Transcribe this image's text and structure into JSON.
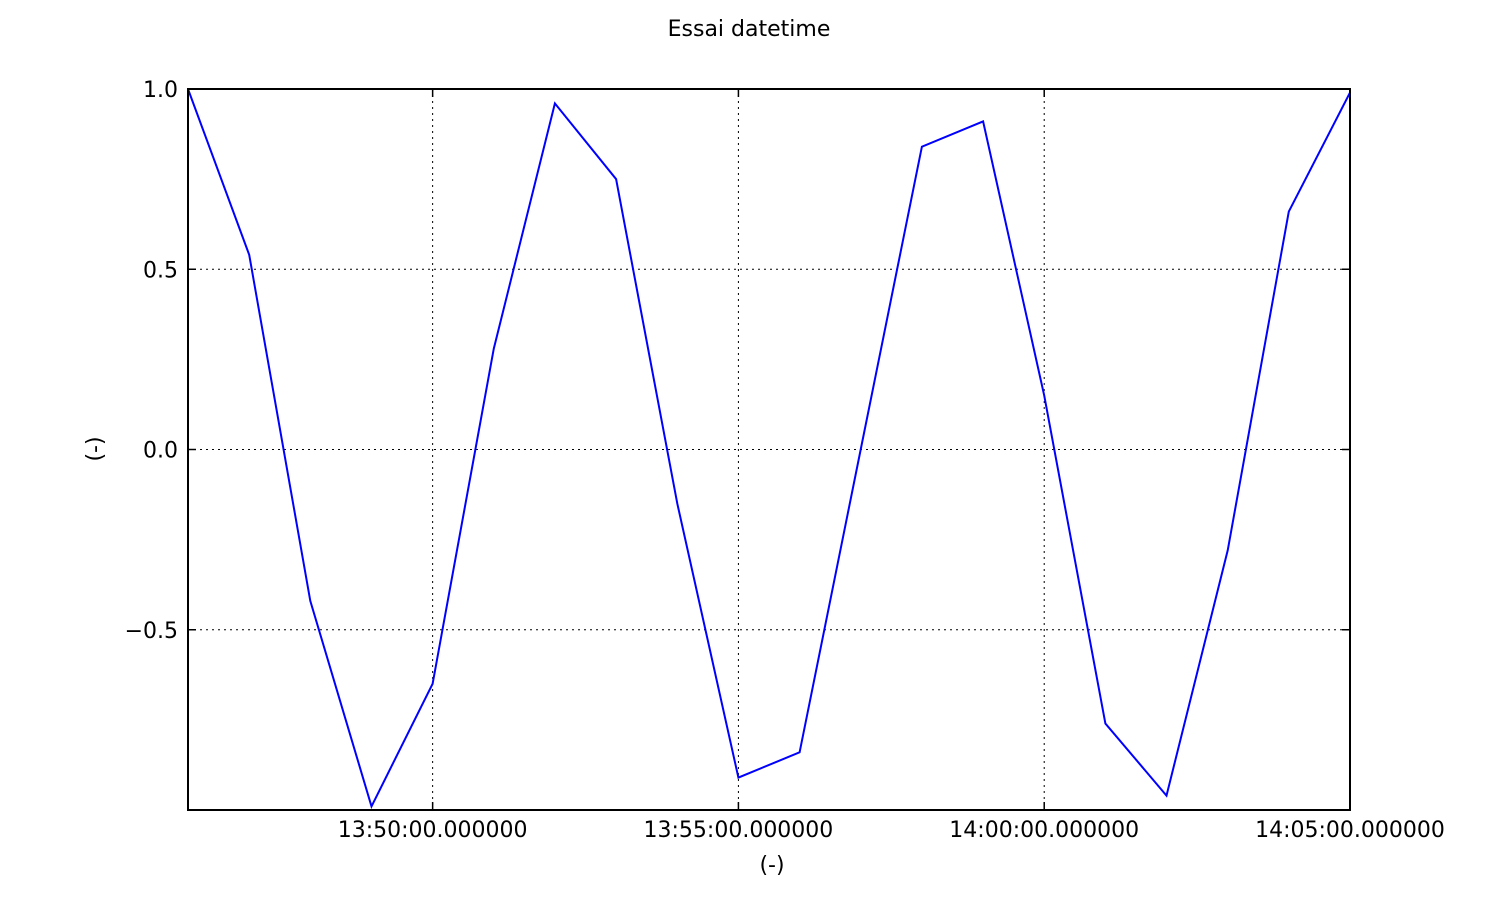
{
  "chart_data": {
    "type": "line",
    "title": "Essai datetime",
    "xlabel": "(-)",
    "ylabel": "(-)",
    "grid": true,
    "x_axis_kind": "time",
    "xlim": [
      "13:46:00",
      "14:05:00"
    ],
    "ylim": [
      -1.0,
      1.0
    ],
    "x_ticks": [
      {
        "value": "13:50:00",
        "label": "13:50:00.000000"
      },
      {
        "value": "13:55:00",
        "label": "13:55:00.000000"
      },
      {
        "value": "14:00:00",
        "label": "14:00:00.000000"
      },
      {
        "value": "14:05:00",
        "label": "14:05:00.000000"
      }
    ],
    "y_ticks": [
      {
        "value": 1.0,
        "label": "1.0"
      },
      {
        "value": 0.5,
        "label": "0.5"
      },
      {
        "value": 0.0,
        "label": "0.0"
      },
      {
        "value": -0.5,
        "label": "−0.5"
      }
    ],
    "series": [
      {
        "color": "#0000ff",
        "x": [
          "13:46:00",
          "13:47:00",
          "13:48:00",
          "13:49:00",
          "13:50:00",
          "13:51:00",
          "13:52:00",
          "13:53:00",
          "13:54:00",
          "13:55:00",
          "13:56:00",
          "13:57:00",
          "13:58:00",
          "13:59:00",
          "14:00:00",
          "14:01:00",
          "14:02:00",
          "14:03:00",
          "14:04:00",
          "14:05:00"
        ],
        "y": [
          1.0,
          0.54,
          -0.42,
          -0.99,
          -0.65,
          0.28,
          0.96,
          0.75,
          -0.15,
          -0.91,
          -0.84,
          0.0,
          0.84,
          0.91,
          0.15,
          -0.76,
          -0.96,
          -0.28,
          0.66,
          0.99
        ]
      }
    ]
  }
}
